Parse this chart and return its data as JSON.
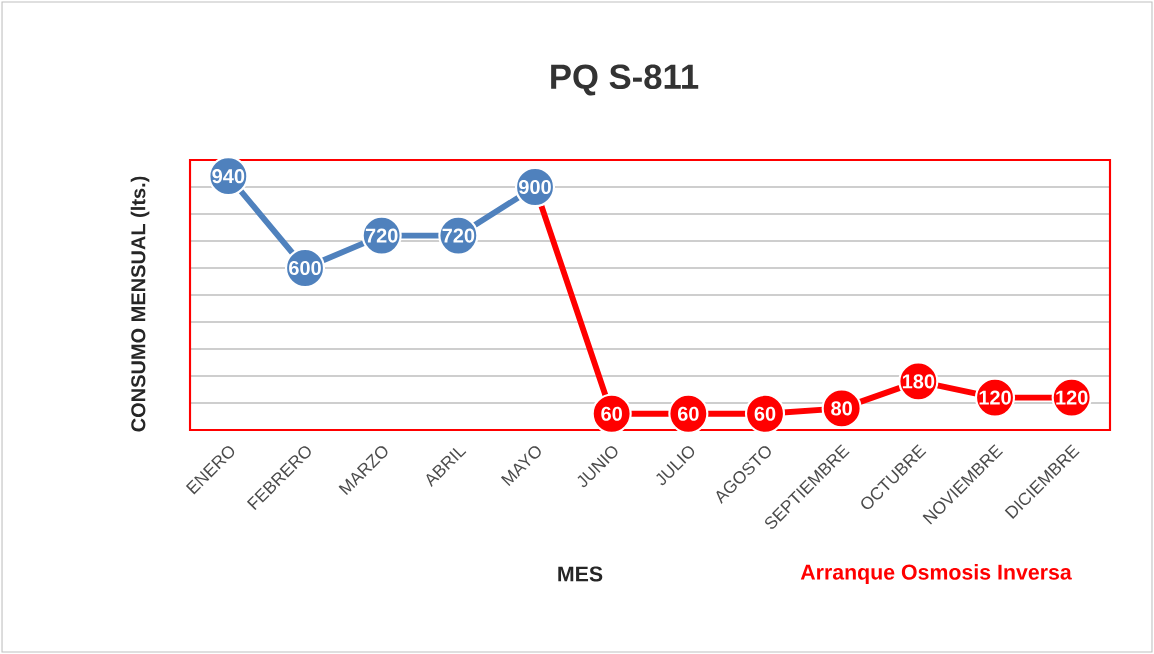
{
  "chart_data": {
    "type": "line",
    "title": "PQ S-811",
    "xlabel": "MES",
    "ylabel": "CONSUMO MENSUAL (lts.)",
    "annotations": [
      "Arranque Osmosis Inversa"
    ],
    "categories": [
      "ENERO",
      "FEBRERO",
      "MARZO",
      "ABRIL",
      "MAYO",
      "JUNIO",
      "JULIO",
      "AGOSTO",
      "SEPTIEMBRE",
      "OCTUBRE",
      "NOVIEMBRE",
      "DICIEMBRE"
    ],
    "series": [
      {
        "color": "#ff0000",
        "values": [
          null,
          null,
          null,
          null,
          900,
          60,
          60,
          60,
          80,
          180,
          120,
          120
        ],
        "value_labels": [
          null,
          null,
          null,
          null,
          null,
          "60",
          "60",
          "60",
          "80",
          "180",
          "120",
          "120"
        ]
      },
      {
        "color": "#4f81bd",
        "values": [
          940,
          600,
          720,
          720,
          900,
          null,
          null,
          null,
          null,
          null,
          null,
          null
        ],
        "value_labels": [
          "940",
          "600",
          "720",
          "720",
          "900",
          null,
          null,
          null,
          null,
          null,
          null,
          null
        ]
      }
    ],
    "ylim": [
      0,
      1000
    ],
    "yticks": [
      {
        "value": 0,
        "label": null
      },
      {
        "value": 100,
        "label": null
      },
      {
        "value": 200,
        "label": null
      },
      {
        "value": 300,
        "label": null
      },
      {
        "value": 400,
        "label": null
      },
      {
        "value": 500,
        "label": null
      },
      {
        "value": 600,
        "label": null
      },
      {
        "value": 700,
        "label": null
      },
      {
        "value": 800,
        "label": null
      },
      {
        "value": 900,
        "label": null
      },
      {
        "value": 1000,
        "label": null
      }
    ],
    "tick_labels": "x",
    "grid": "y",
    "marker": "circle",
    "line_style": "solid"
  }
}
